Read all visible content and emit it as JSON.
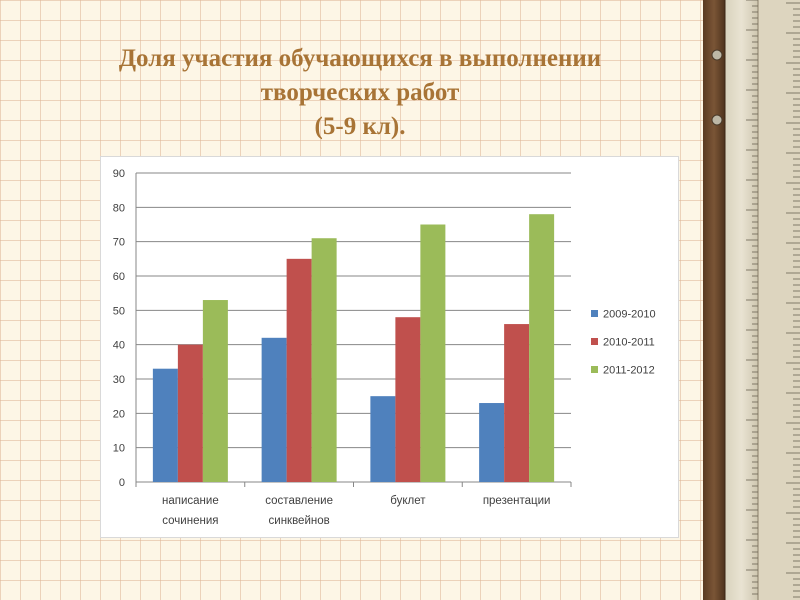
{
  "title": {
    "line1": "Доля  участия обучающихся в выполнении",
    "line2": "творческих работ",
    "line3": "(5-9 кл)."
  },
  "colors": {
    "title": "#a87436",
    "background": "#fdf6e6",
    "grid": "#deb496"
  },
  "chart_data": {
    "type": "bar",
    "categories": [
      [
        "написание",
        "сочинения"
      ],
      [
        "составление",
        "синквейнов"
      ],
      [
        "буклет"
      ],
      [
        "презентации"
      ]
    ],
    "series": [
      {
        "name": "2009-2010",
        "color": "#4f81bd",
        "values": [
          33,
          42,
          25,
          23
        ]
      },
      {
        "name": "2010-2011",
        "color": "#c0504d",
        "values": [
          40,
          65,
          48,
          46
        ]
      },
      {
        "name": "2011-2012",
        "color": "#9bbb59",
        "values": [
          53,
          71,
          75,
          78
        ]
      }
    ],
    "ylim": [
      0,
      90
    ],
    "yticks": [
      0,
      10,
      20,
      30,
      40,
      50,
      60,
      70,
      80,
      90
    ],
    "grid": true,
    "legend": "right"
  }
}
